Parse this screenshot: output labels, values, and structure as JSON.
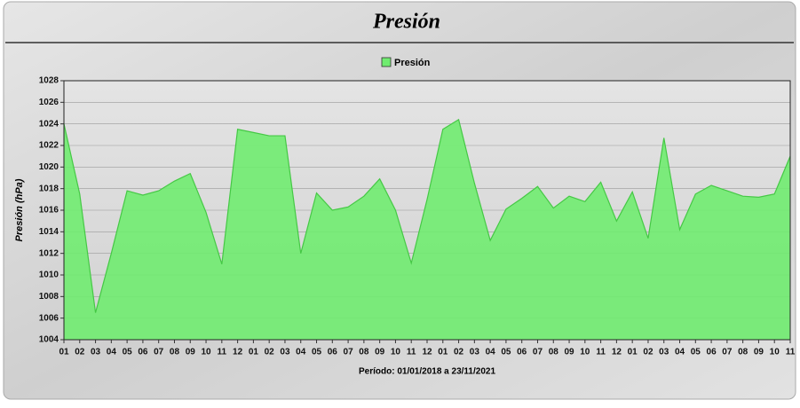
{
  "chart_data": {
    "type": "area",
    "title": "Presión",
    "ylabel": "Presión (hPa)",
    "xlabel": "Período: 01/01/2018 a 23/11/2021",
    "categories": [
      "01",
      "02",
      "03",
      "04",
      "05",
      "06",
      "07",
      "08",
      "09",
      "10",
      "11",
      "12",
      "01",
      "02",
      "03",
      "04",
      "05",
      "06",
      "07",
      "08",
      "09",
      "10",
      "11",
      "12",
      "01",
      "02",
      "03",
      "04",
      "05",
      "06",
      "07",
      "08",
      "09",
      "10",
      "11",
      "12",
      "01",
      "02",
      "03",
      "04",
      "05",
      "06",
      "07",
      "08",
      "09",
      "10",
      "11"
    ],
    "series": [
      {
        "name": "Presión",
        "color": "#70ec70",
        "values": [
          1024.0,
          1017.5,
          1006.5,
          1012.0,
          1017.8,
          1017.4,
          1017.8,
          1018.7,
          1019.4,
          1015.8,
          1011.0,
          1023.5,
          1023.2,
          1022.9,
          1022.9,
          1012.0,
          1017.6,
          1016.0,
          1016.3,
          1017.3,
          1018.9,
          1016.0,
          1011.1,
          1017.0,
          1023.5,
          1024.4,
          1018.5,
          1013.2,
          1016.1,
          1017.1,
          1018.2,
          1016.2,
          1017.3,
          1016.8,
          1018.6,
          1015.0,
          1017.7,
          1013.4,
          1022.7,
          1014.2,
          1017.5,
          1018.3,
          1017.8,
          1017.3,
          1017.2,
          1017.5,
          1021.0
        ]
      }
    ],
    "ylim": [
      1004,
      1028
    ],
    "yticks": [
      1004,
      1006,
      1008,
      1010,
      1012,
      1014,
      1016,
      1018,
      1020,
      1022,
      1024,
      1026,
      1028
    ],
    "grid": true,
    "legend": "top"
  }
}
